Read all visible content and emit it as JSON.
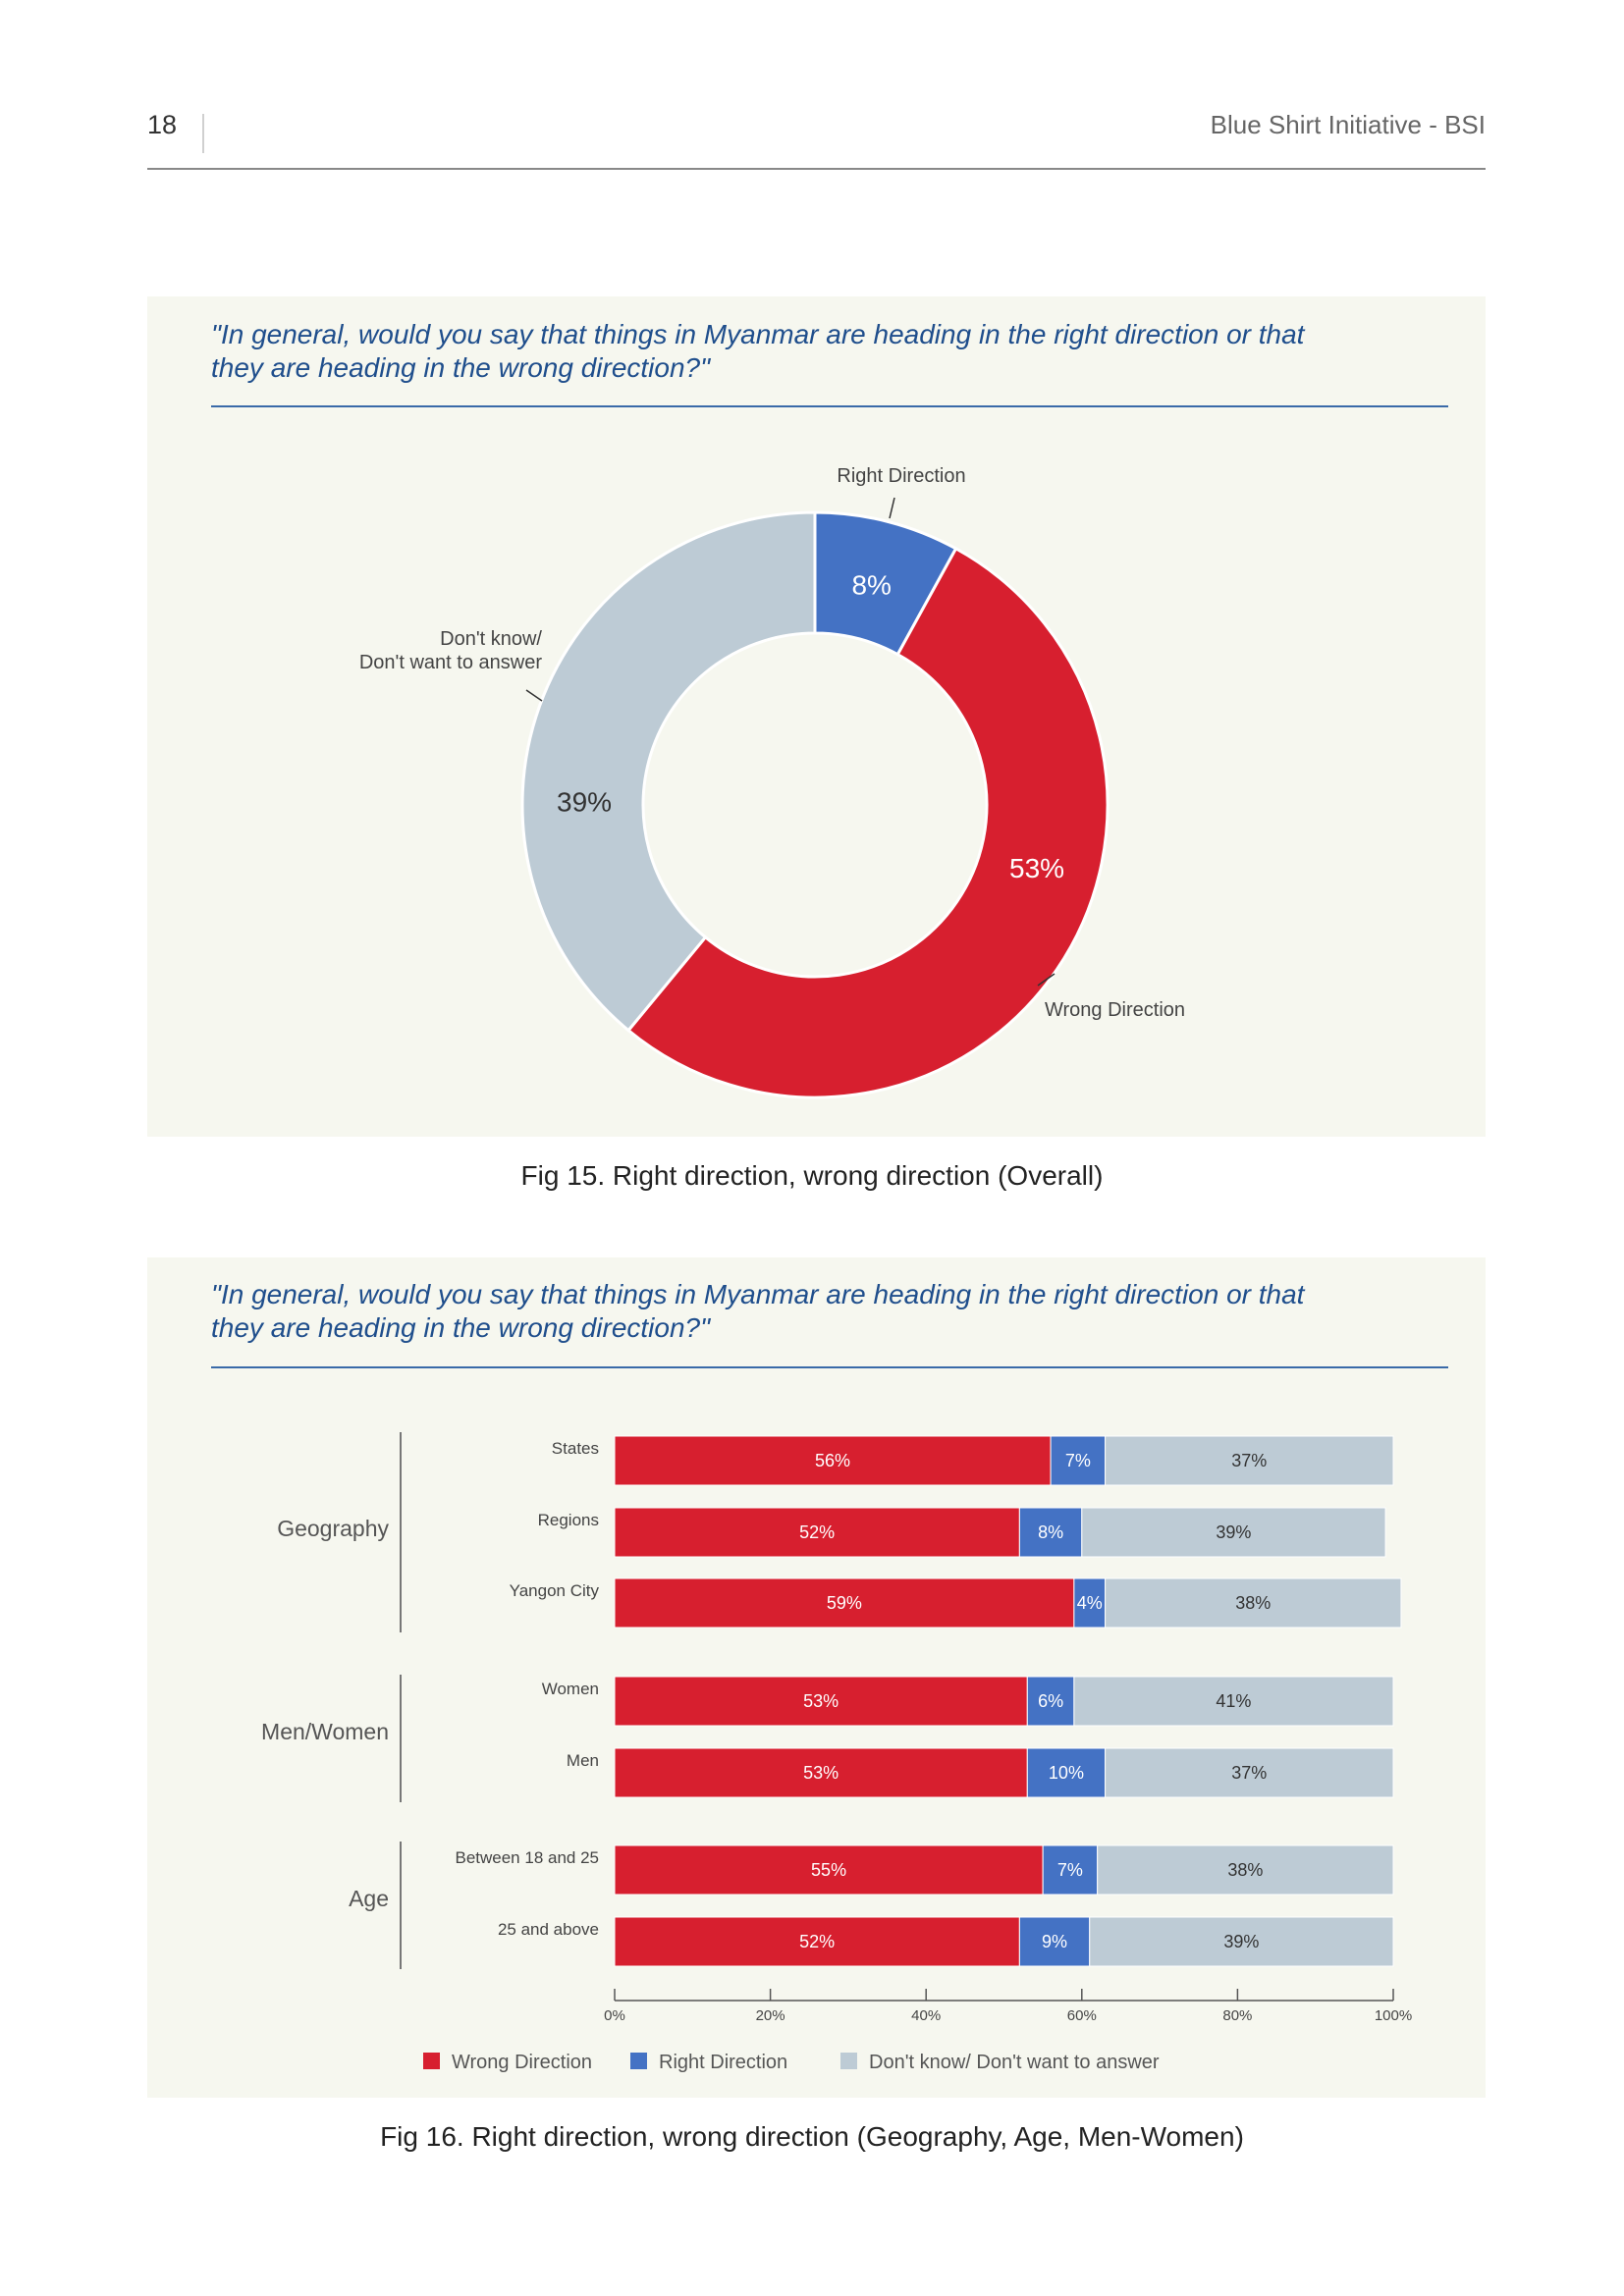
{
  "header": {
    "page_number": "18",
    "running_title": "Blue Shirt Initiative - BSI"
  },
  "colors": {
    "wrong": "#d71f2f",
    "right": "#4472c4",
    "dontknow": "#bdcbd5",
    "panel_bg": "#f6f7ef",
    "question_text": "#1f4e8c"
  },
  "figure15": {
    "question_line1": "\"In general, would you say that things in Myanmar are heading in the right direction or that",
    "question_line2": "they are heading in the wrong direction?\"",
    "caption": "Fig 15. Right direction, wrong direction (Overall)"
  },
  "figure16": {
    "question_line1": "\"In general, would you say that things in Myanmar are heading in the right direction or that",
    "question_line2": "they are heading in the wrong direction?\"",
    "caption": "Fig 16. Right direction, wrong direction (Geography, Age, Men-Women)"
  },
  "chart_data": [
    {
      "type": "pie",
      "variant": "donut",
      "slices": [
        {
          "label": "Right Direction",
          "value": 8,
          "value_label": "8%",
          "color": "#4472c4"
        },
        {
          "label": "Wrong Direction",
          "value": 53,
          "value_label": "53%",
          "color": "#d71f2f"
        },
        {
          "label_lines": [
            "Don't know/",
            "Don't want to answer"
          ],
          "value": 39,
          "value_label": "39%",
          "color": "#bdcbd5"
        }
      ]
    },
    {
      "type": "bar",
      "orientation": "horizontal",
      "stacked": true,
      "groups": [
        {
          "label": "Geography",
          "categories": [
            "States",
            "Regions",
            "Yangon City"
          ]
        },
        {
          "label": "Men/Women",
          "categories": [
            "Women",
            "Men"
          ]
        },
        {
          "label": "Age",
          "categories": [
            "Between 18 and 25",
            "25 and above"
          ]
        }
      ],
      "categories": [
        "States",
        "Regions",
        "Yangon City",
        "Women",
        "Men",
        "Between 18 and 25",
        "25 and above"
      ],
      "series": [
        {
          "name": "Wrong Direction",
          "color": "#d71f2f",
          "values": [
            56,
            52,
            59,
            53,
            53,
            55,
            52
          ],
          "labels": [
            "56%",
            "52%",
            "59%",
            "53%",
            "53%",
            "55%",
            "52%"
          ]
        },
        {
          "name": "Right Direction",
          "color": "#4472c4",
          "values": [
            7,
            8,
            4,
            6,
            10,
            7,
            9
          ],
          "labels": [
            "7%",
            "8%",
            "4%",
            "6%",
            "10%",
            "7%",
            "9%"
          ]
        },
        {
          "name": "Don't know/ Don't want to answer",
          "color": "#bdcbd5",
          "values": [
            37,
            39,
            38,
            41,
            37,
            38,
            39
          ],
          "labels": [
            "37%",
            "39%",
            "38%",
            "41%",
            "37%",
            "38%",
            "39%"
          ]
        }
      ],
      "xlim": [
        0,
        100
      ],
      "xticks": [
        "0%",
        "20%",
        "40%",
        "60%",
        "80%",
        "100%"
      ],
      "legend_position": "bottom"
    }
  ]
}
